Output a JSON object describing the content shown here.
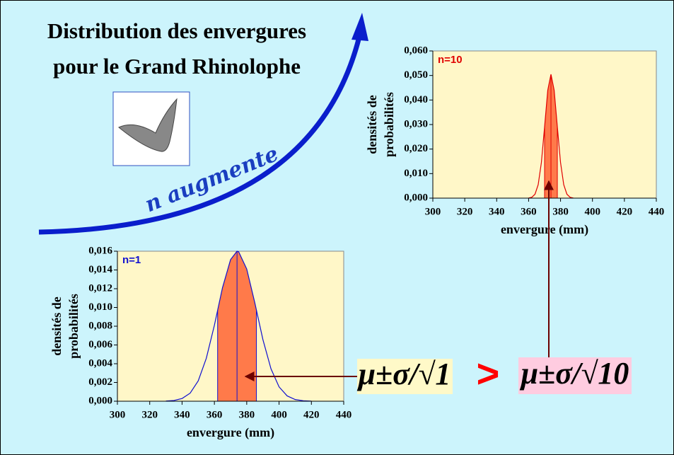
{
  "slide": {
    "title": [
      "Distribution des envergures",
      "pour le Grand Rhinolophe"
    ],
    "arrow_label": "n augmente",
    "formula_left": "μ±σ/√1",
    "comparison": ">",
    "formula_right": "μ±σ/√10"
  },
  "chart_data": [
    {
      "type": "area",
      "annotation": "n=10",
      "xlabel": "envergure (mm)",
      "ylabel": [
        "densités de",
        "probabilités"
      ],
      "x": [
        360,
        362,
        364,
        366,
        368,
        370,
        372,
        374,
        376,
        378,
        380,
        382,
        384,
        386,
        388
      ],
      "values": [
        6e-05,
        0.00034,
        0.00159,
        0.0055,
        0.0145,
        0.029,
        0.044,
        0.0505,
        0.044,
        0.029,
        0.0145,
        0.0055,
        0.00159,
        0.00034,
        6e-05
      ],
      "color": "#e00000",
      "band_color": "#ff7a4a",
      "interval": [
        370,
        378
      ],
      "mean": 374,
      "xlim": [
        300,
        440
      ],
      "xticks": [
        300,
        320,
        340,
        360,
        380,
        400,
        420,
        440
      ],
      "ylim": [
        0,
        0.06
      ],
      "yticks": [
        {
          "value": 0,
          "label": "0,000"
        },
        {
          "value": 0.01,
          "label": "0,010"
        },
        {
          "value": 0.02,
          "label": "0,020"
        },
        {
          "value": 0.03,
          "label": "0,030"
        },
        {
          "value": 0.04,
          "label": "0,040"
        },
        {
          "value": 0.05,
          "label": "0,050"
        },
        {
          "value": 0.06,
          "label": "0,060"
        }
      ]
    },
    {
      "type": "area",
      "annotation": "n=1",
      "xlabel": "envergure (mm)",
      "ylabel": [
        "densités de",
        "probabilités"
      ],
      "x": [
        330,
        335,
        340,
        345,
        350,
        355,
        360,
        365,
        370,
        374,
        375,
        380,
        385,
        390,
        395,
        400,
        405,
        410,
        415,
        420
      ],
      "values": [
        2e-05,
        8e-05,
        0.00029,
        0.00086,
        0.00217,
        0.00458,
        0.0081,
        0.0121,
        0.0151,
        0.016,
        0.01594,
        0.0141,
        0.0105,
        0.00658,
        0.00346,
        0.00153,
        0.00057,
        0.00018,
        5e-05,
        1e-05
      ],
      "color": "#1010d0",
      "band_color": "#ff7a4a",
      "interval": [
        362,
        386
      ],
      "mean": 374,
      "xlim": [
        300,
        440
      ],
      "xticks": [
        300,
        320,
        340,
        360,
        380,
        400,
        420,
        440
      ],
      "ylim": [
        0,
        0.016
      ],
      "yticks": [
        {
          "value": 0,
          "label": "0,000"
        },
        {
          "value": 0.002,
          "label": "0,002"
        },
        {
          "value": 0.004,
          "label": "0,004"
        },
        {
          "value": 0.006,
          "label": "0,006"
        },
        {
          "value": 0.008,
          "label": "0,008"
        },
        {
          "value": 0.01,
          "label": "0,010"
        },
        {
          "value": 0.012,
          "label": "0,012"
        },
        {
          "value": 0.014,
          "label": "0,014"
        },
        {
          "value": 0.016,
          "label": "0,016"
        }
      ]
    }
  ]
}
